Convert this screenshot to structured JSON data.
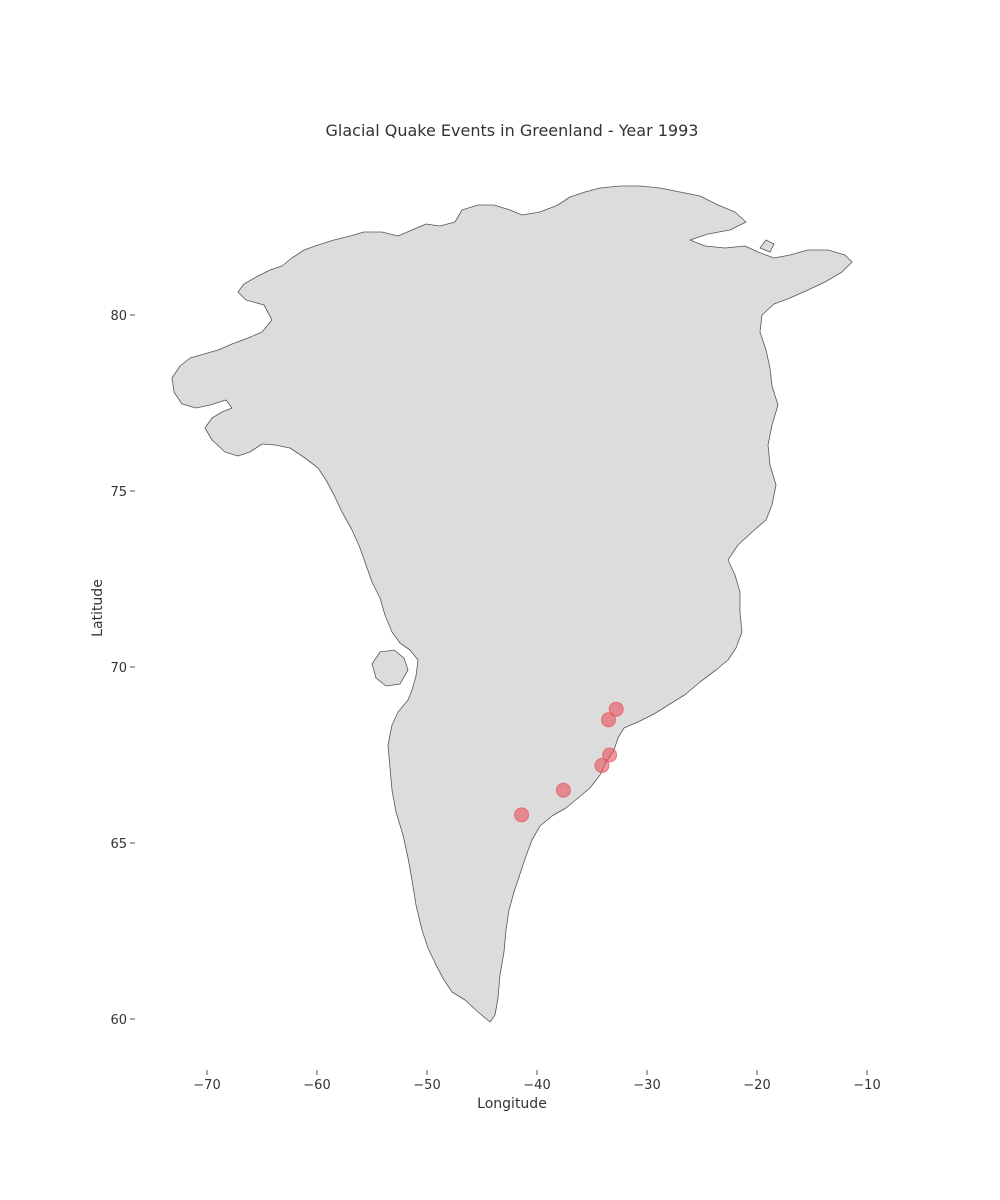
{
  "chart_data": {
    "type": "scatter",
    "title": "Glacial Quake Events in Greenland - Year 1993",
    "xlabel": "Longitude",
    "ylabel": "Latitude",
    "xlim": [
      -75,
      -7.5
    ],
    "ylim": [
      58.5,
      84.1
    ],
    "x_ticks": [
      -70,
      -60,
      -50,
      -40,
      -30,
      -20,
      -10
    ],
    "x_tick_labels": [
      "−70",
      "−60",
      "−50",
      "−40",
      "−30",
      "−20",
      "−10"
    ],
    "y_ticks": [
      60,
      65,
      70,
      75,
      80
    ],
    "y_tick_labels": [
      "60",
      "65",
      "70",
      "75",
      "80"
    ],
    "grid": false,
    "base_map": "Greenland landmass",
    "colors": {
      "land": "#dcdcdc",
      "coast": "#555555",
      "marker": "#e8505b"
    },
    "series": [
      {
        "x": [
          -32.8,
          -33.5,
          -33.4,
          -34.1,
          -37.6,
          -41.4
        ],
        "y": [
          68.8,
          68.5,
          67.5,
          67.2,
          66.5,
          65.8
        ]
      }
    ]
  }
}
